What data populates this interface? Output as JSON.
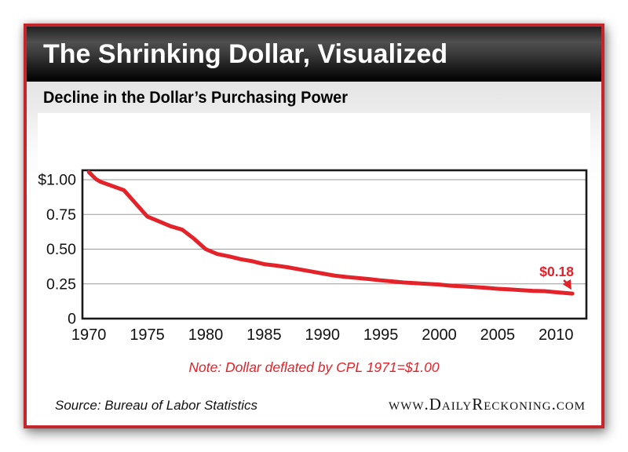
{
  "header": {
    "title": "The Shrinking Dollar, Visualized"
  },
  "subtitle": "Decline in the Dollar’s Purchasing Power",
  "chart_data": {
    "type": "line",
    "title": "Decline in the Dollar’s Purchasing Power",
    "xlabel": "",
    "ylabel": "",
    "x": [
      1970,
      1970.6,
      1971,
      1972,
      1973,
      1974,
      1975,
      1976,
      1977,
      1978,
      1979,
      1980,
      1981,
      1982,
      1983,
      1984,
      1985,
      1986,
      1987,
      1988,
      1989,
      1990,
      1991,
      1992,
      1993,
      1994,
      1995,
      1996,
      1997,
      1998,
      1999,
      2000,
      2001,
      2002,
      2003,
      2004,
      2005,
      2006,
      2007,
      2008,
      2009,
      2010,
      2011,
      2011.4
    ],
    "values": [
      1.055,
      1.005,
      0.985,
      0.955,
      0.925,
      0.83,
      0.735,
      0.7,
      0.665,
      0.64,
      0.575,
      0.5,
      0.465,
      0.448,
      0.428,
      0.413,
      0.392,
      0.382,
      0.37,
      0.355,
      0.34,
      0.325,
      0.31,
      0.3,
      0.292,
      0.285,
      0.275,
      0.268,
      0.26,
      0.255,
      0.25,
      0.245,
      0.237,
      0.232,
      0.227,
      0.222,
      0.215,
      0.21,
      0.205,
      0.2,
      0.198,
      0.19,
      0.183,
      0.18
    ],
    "xticks": [
      1970,
      1975,
      1980,
      1985,
      1990,
      1995,
      2000,
      2005,
      2010
    ],
    "yticks": [
      {
        "label": "$1.00",
        "value": 1.0
      },
      {
        "label": "0.75",
        "value": 0.75
      },
      {
        "label": "0.50",
        "value": 0.5
      },
      {
        "label": "0.25",
        "value": 0.25
      },
      {
        "label": "0",
        "value": 0
      }
    ],
    "xlim": [
      1969.45,
      2012.6
    ],
    "ylim": [
      0,
      1.068
    ],
    "grid": true,
    "legend": "none",
    "annotation": {
      "label": "$0.18",
      "x": 2011.4,
      "y": 0.18
    },
    "note": "Note: Dollar deflated by CPL 1971=$1.00"
  },
  "footer": {
    "source": "Source: Bureau of Labor Statistics",
    "website": "www.DailyReckoning.com"
  },
  "colors": {
    "accent_red": "#c3262c",
    "line_red": "#e3222a",
    "grid": "#999999",
    "plot_border": "#1a1a1a",
    "tick_text": "#111111"
  }
}
